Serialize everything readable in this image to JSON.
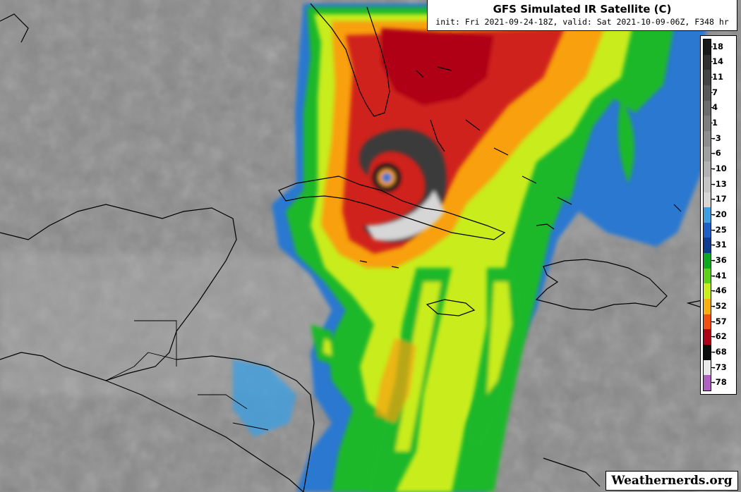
{
  "header": {
    "title": "GFS Simulated IR Satellite (C)",
    "subtitle": "init: Fri 2021-09-24-18Z, valid: Sat 2021-10-09-06Z, F348 hr"
  },
  "colorbar": {
    "labels": [
      "18",
      "14",
      "11",
      "7",
      "4",
      "1",
      "-3",
      "-6",
      "-10",
      "-13",
      "-17",
      "-20",
      "-25",
      "-31",
      "-36",
      "-41",
      "-46",
      "-52",
      "-57",
      "-62",
      "-68",
      "-73",
      "-78"
    ],
    "colors": [
      "#1a1a1a",
      "#303030",
      "#444444",
      "#585858",
      "#6c6c6c",
      "#7d7d7d",
      "#8e8e8e",
      "#a0a0a0",
      "#b2b2b2",
      "#c4c4c4",
      "#d6d6d6",
      "#3f9fe0",
      "#1f5fc8",
      "#0f3b90",
      "#0ca820",
      "#5fd01a",
      "#c9ec1c",
      "#f8b010",
      "#f25010",
      "#b00018",
      "#0d0d0d",
      "#e8e8e8",
      "#b060c0"
    ]
  },
  "map": {
    "background_color": "#8a8a8a",
    "storm_label": "",
    "features": {
      "coastline_color": "#000000"
    }
  },
  "watermark": {
    "text": "Weathernerds.org"
  }
}
